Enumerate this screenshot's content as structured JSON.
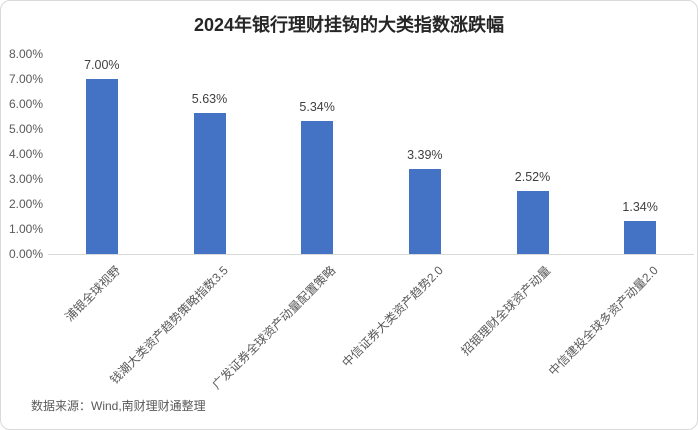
{
  "footer": {
    "source": "数据来源：Wind,南财理财通整理"
  },
  "colors": {
    "bar": "#4472C4",
    "axis_line": "#D9D9D9",
    "tick_label": "#595959",
    "value_label": "#404040",
    "title": "#262626",
    "border": "#D9D9D9"
  },
  "chart_data": {
    "type": "bar",
    "title": "2024年银行理财挂钩的大类指数涨跌幅",
    "categories": [
      "浦银全球视野",
      "钱潮大类资产趋势策略指数3.5",
      "广发证券全球资产动量配置策略",
      "中信证券大类资产趋势2.0",
      "招银理财全球资产动量",
      "中信建投全球多资产动量2.0"
    ],
    "values": [
      7.0,
      5.63,
      5.34,
      3.39,
      2.52,
      1.34
    ],
    "value_labels": [
      "7.00%",
      "5.63%",
      "5.34%",
      "3.39%",
      "2.52%",
      "1.34%"
    ],
    "xlabel": "",
    "ylabel": "",
    "ylim": [
      0,
      8
    ],
    "ytick_labels": [
      "0.00%",
      "1.00%",
      "2.00%",
      "3.00%",
      "4.00%",
      "5.00%",
      "6.00%",
      "7.00%",
      "8.00%"
    ],
    "grid": false,
    "legend": false,
    "x_labels_rotation_deg": -45
  }
}
